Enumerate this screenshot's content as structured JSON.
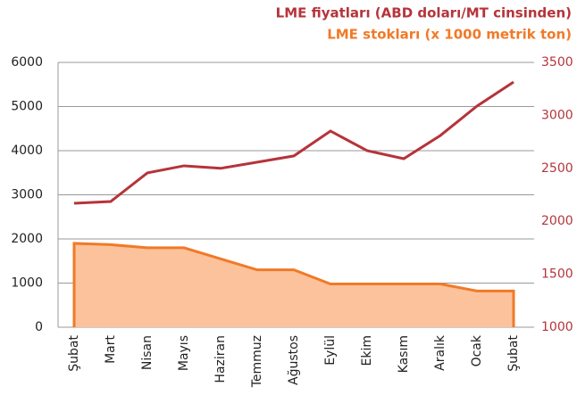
{
  "chart_data": {
    "type": "line_area",
    "categories": [
      "Şubat",
      "Mart",
      "Nisan",
      "Mayıs",
      "Haziran",
      "Temmuz",
      "Ağustos",
      "Eylül",
      "Ekim",
      "Kasım",
      "Aralık",
      "Ocak",
      "Şubat"
    ],
    "series": [
      {
        "name": "LME fiyatları (ABD doları/MT cinsinden)",
        "color": "#b5343a",
        "axis": "y2",
        "kind": "line",
        "values": [
          2170,
          2187,
          2457,
          2524,
          2500,
          2558,
          2617,
          2852,
          2667,
          2591,
          2810,
          3088,
          3315
        ]
      },
      {
        "name": "LME stokları (x 1000 metrik ton)",
        "color": "#f07a28",
        "fill": "#fcc29b",
        "axis": "y",
        "kind": "area",
        "values": [
          1900,
          1870,
          1800,
          1800,
          1550,
          1300,
          1300,
          980,
          980,
          980,
          980,
          820,
          820
        ]
      }
    ],
    "ylim": [
      0,
      6000
    ],
    "yticks": [
      0,
      1000,
      2000,
      3000,
      4000,
      5000,
      6000
    ],
    "y2lim": [
      1000,
      3500
    ],
    "y2ticks": [
      1000,
      1500,
      2000,
      2500,
      3000,
      3500
    ],
    "y2color": "#b5343a",
    "grid": true
  }
}
